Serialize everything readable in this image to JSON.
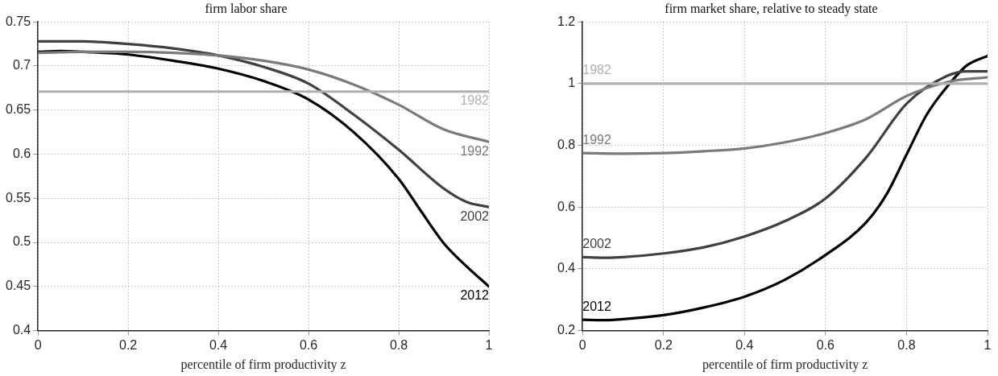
{
  "chart_data": [
    {
      "type": "line",
      "title": "firm labor share",
      "xlabel": "percentile of firm productivity z",
      "xlim": [
        0,
        1
      ],
      "xticks": [
        0,
        0.2,
        0.4,
        0.6,
        0.8,
        1
      ],
      "ylim": [
        0.4,
        0.75
      ],
      "yticks": [
        0.4,
        0.45,
        0.5,
        0.55,
        0.6,
        0.65,
        0.7,
        0.75
      ],
      "grid": true,
      "legend": false,
      "marker": "none",
      "line_style": "solid",
      "series": [
        {
          "name": "1982",
          "color": "#b0b0b0",
          "x": [
            0,
            1
          ],
          "values": [
            0.671,
            0.671
          ]
        },
        {
          "name": "1992",
          "color": "#7a7a7a",
          "x": [
            0,
            0.1,
            0.2,
            0.3,
            0.4,
            0.5,
            0.6,
            0.7,
            0.8,
            0.9,
            1
          ],
          "values": [
            0.715,
            0.716,
            0.716,
            0.715,
            0.712,
            0.706,
            0.696,
            0.679,
            0.656,
            0.628,
            0.614
          ]
        },
        {
          "name": "2002",
          "color": "#404040",
          "x": [
            0,
            0.05,
            0.1,
            0.2,
            0.3,
            0.4,
            0.5,
            0.6,
            0.7,
            0.8,
            0.9,
            0.95,
            1
          ],
          "values": [
            0.728,
            0.728,
            0.728,
            0.725,
            0.72,
            0.712,
            0.699,
            0.68,
            0.645,
            0.605,
            0.561,
            0.546,
            0.54
          ]
        },
        {
          "name": "2012",
          "color": "#000000",
          "x": [
            0,
            0.05,
            0.1,
            0.2,
            0.3,
            0.4,
            0.5,
            0.6,
            0.7,
            0.8,
            0.85,
            0.9,
            0.95,
            1
          ],
          "values": [
            0.716,
            0.717,
            0.716,
            0.713,
            0.706,
            0.697,
            0.683,
            0.662,
            0.625,
            0.572,
            0.535,
            0.499,
            0.473,
            0.45
          ]
        }
      ]
    },
    {
      "type": "line",
      "title": "firm market share, relative to steady state",
      "xlabel": "percentile of firm productivity z",
      "xlim": [
        0,
        1
      ],
      "xticks": [
        0,
        0.2,
        0.4,
        0.6,
        0.8,
        1
      ],
      "ylim": [
        0.2,
        1.2
      ],
      "yticks": [
        0.2,
        0.4,
        0.6,
        0.8,
        1,
        1.2
      ],
      "grid": true,
      "legend": false,
      "marker": "none",
      "line_style": "solid",
      "series": [
        {
          "name": "1982",
          "color": "#b0b0b0",
          "x": [
            0,
            1
          ],
          "values": [
            1,
            1
          ]
        },
        {
          "name": "1992",
          "color": "#7a7a7a",
          "x": [
            0,
            0.1,
            0.2,
            0.3,
            0.4,
            0.5,
            0.6,
            0.7,
            0.8,
            0.9,
            0.95,
            1
          ],
          "values": [
            0.775,
            0.773,
            0.775,
            0.781,
            0.79,
            0.81,
            0.84,
            0.885,
            0.96,
            1.005,
            1.015,
            1.02
          ]
        },
        {
          "name": "2002",
          "color": "#404040",
          "x": [
            0,
            0.05,
            0.1,
            0.2,
            0.3,
            0.4,
            0.5,
            0.6,
            0.7,
            0.8,
            0.9,
            0.95,
            1
          ],
          "values": [
            0.438,
            0.436,
            0.438,
            0.45,
            0.47,
            0.505,
            0.555,
            0.628,
            0.76,
            0.935,
            1.025,
            1.04,
            1.04
          ]
        },
        {
          "name": "2012",
          "color": "#000000",
          "x": [
            0,
            0.05,
            0.1,
            0.2,
            0.3,
            0.4,
            0.5,
            0.6,
            0.7,
            0.75,
            0.8,
            0.85,
            0.9,
            0.95,
            1
          ],
          "values": [
            0.235,
            0.234,
            0.237,
            0.25,
            0.275,
            0.31,
            0.365,
            0.445,
            0.55,
            0.64,
            0.77,
            0.9,
            0.99,
            1.06,
            1.09
          ]
        }
      ]
    }
  ]
}
